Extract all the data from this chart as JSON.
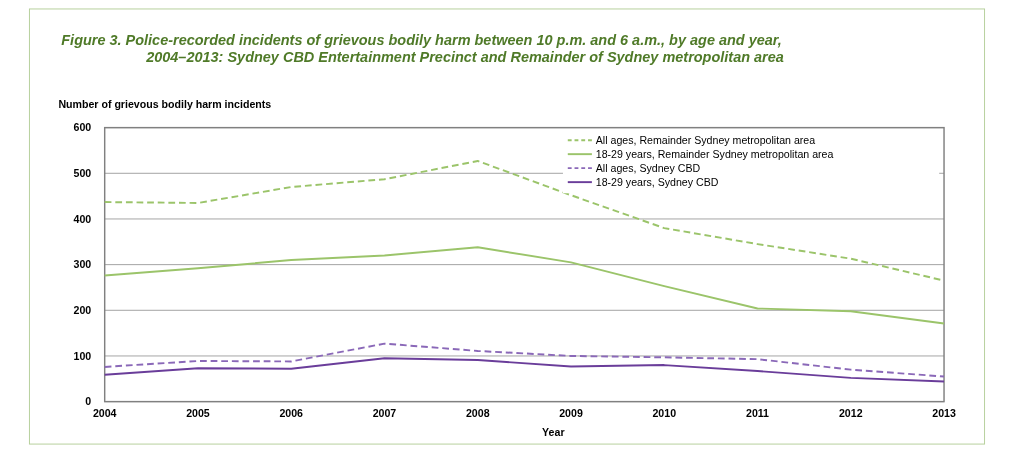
{
  "chart_data": {
    "type": "line",
    "title": "Figure 3.  Police-recorded incidents of grievous bodily harm between 10 p.m. and 6 a.m., by age and year, 2004–2013: Sydney CBD Entertainment Precinct and Remainder of Sydney metropolitan area",
    "ylabel": "Number of grievous bodily harm incidents",
    "xlabel": "Year",
    "categories": [
      "2004",
      "2005",
      "2006",
      "2007",
      "2008",
      "2009",
      "2010",
      "2011",
      "2012",
      "2013"
    ],
    "ylim": [
      0,
      600
    ],
    "yticks": [
      0,
      100,
      200,
      300,
      400,
      500,
      600
    ],
    "grid": "y",
    "legend": "top right",
    "marker": "none",
    "series": [
      {
        "name": "All ages, Remainder Sydney metropolitan area",
        "color": "#9bc46a",
        "line_style": "dashed",
        "values": [
          437,
          435,
          470,
          487,
          527,
          452,
          380,
          345,
          313,
          265
        ]
      },
      {
        "name": "18-29 years, Remainder Sydney metropolitan area",
        "color": "#9bc46a",
        "line_style": "solid",
        "values": [
          276,
          292,
          310,
          320,
          338,
          305,
          253,
          204,
          198,
          171
        ]
      },
      {
        "name": "All ages, Sydney CBD",
        "color": "#8a68b8",
        "line_style": "dashed",
        "values": [
          76,
          89,
          88,
          127,
          111,
          100,
          97,
          93,
          70,
          55
        ]
      },
      {
        "name": "18-29 years, Sydney CBD",
        "color": "#6a3d9a",
        "line_style": "solid",
        "values": [
          59,
          73,
          72,
          95,
          91,
          77,
          80,
          67,
          52,
          44
        ]
      }
    ]
  }
}
